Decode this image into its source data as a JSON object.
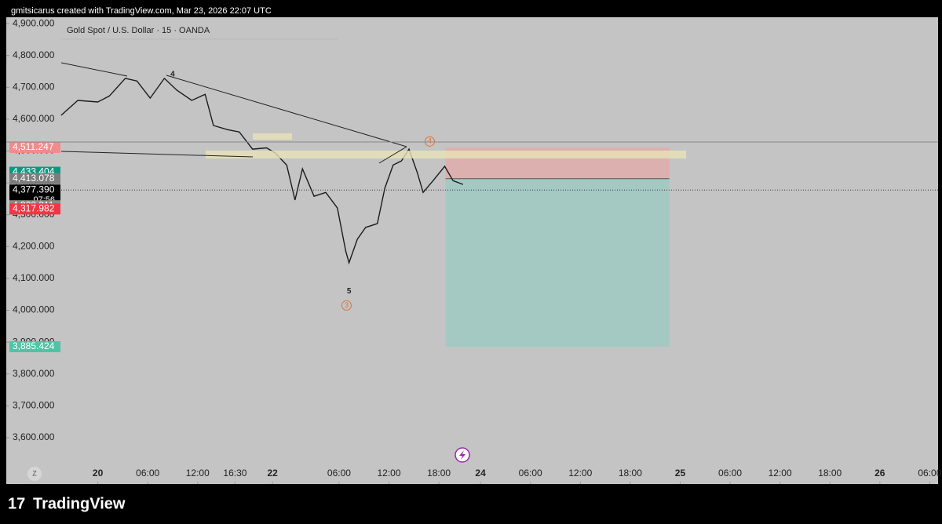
{
  "header": "gmitsicarus created with TradingView.com, Mar 23, 2026 22:07 UTC",
  "footer": "TradingView",
  "scale_button": "Z",
  "chart_data": {
    "type": "line",
    "title": "Gold Spot / U.S. Dollar · 15 · OANDA",
    "annotations": [
      {
        "text": "4",
        "x": 9,
        "y": 4740
      },
      {
        "text": "5",
        "x": 30.2,
        "y": 4060
      },
      {
        "text": "4",
        "x": 39.9,
        "y": 4530,
        "circled": true
      },
      {
        "text": "3",
        "x": 29.9,
        "y": 4015,
        "circled": true
      }
    ],
    "x": [
      -4.4,
      -2.4,
      0,
      1.4,
      3.3,
      4.7,
      6.3,
      8,
      9.5,
      11.3,
      12.9,
      13.9,
      15.6,
      17,
      18.6,
      20.3,
      21.3,
      22.7,
      23.7,
      24.6,
      26,
      27.4,
      28.8,
      29.8,
      30.2,
      31.2,
      32.2,
      33.6,
      34.5,
      35.5,
      36.5,
      37.4,
      38.4,
      39.1,
      40.3,
      41.7,
      42.7,
      43.9
    ],
    "series": [
      {
        "name": "XAUUSD",
        "color": "#1b1b1b",
        "values": [
          4612,
          4659,
          4654,
          4673,
          4728,
          4720,
          4666,
          4728,
          4691,
          4659,
          4678,
          4580,
          4567,
          4560,
          4506,
          4510,
          4494,
          4456,
          4346,
          4444,
          4358,
          4370,
          4321,
          4186,
          4149,
          4223,
          4260,
          4272,
          4383,
          4456,
          4469,
          4506,
          4432,
          4370,
          4407,
          4452,
          4407,
          4395
        ]
      }
    ],
    "position": {
      "x": [
        41.8,
        68.7
      ],
      "stop": 4511.247,
      "entry": 4413.078,
      "target": 3885.424
    },
    "price_labels": [
      {
        "value": 4511.247,
        "label": "4,511.247",
        "color": "#f28b8b"
      },
      {
        "value": 4433.404,
        "label": "4,433.404",
        "color": "#089981"
      },
      {
        "value": 4413.078,
        "label": "4,413.078",
        "color": "#7d7d7d"
      },
      {
        "value": 4377.39,
        "label": "4,377.390",
        "color": "#000000",
        "countdown": "07:56"
      },
      {
        "value": 4328.311,
        "label": "4,328.311",
        "color": "#8a8a8a"
      },
      {
        "value": 4317.982,
        "label": "4,317.982",
        "color": "#f23645"
      },
      {
        "value": 3885.424,
        "label": "3,885.424",
        "color": "#4fc3a6"
      }
    ],
    "xlim": [
      -11,
      101
    ],
    "ylim": [
      3516,
      4920
    ],
    "yticks": [
      {
        "value": 3600,
        "label": "3,600.000"
      },
      {
        "value": 3700,
        "label": "3,700.000"
      },
      {
        "value": 3800,
        "label": "3,800.000"
      },
      {
        "value": 3900,
        "label": "3,900.000"
      },
      {
        "value": 4000,
        "label": "4,000.000"
      },
      {
        "value": 4100,
        "label": "4,100.000"
      },
      {
        "value": 4200,
        "label": "4,200.000"
      },
      {
        "value": 4300,
        "label": "4,300.000"
      },
      {
        "value": 4400,
        "label": "4,400.000"
      },
      {
        "value": 4500,
        "label": "4,500.000"
      },
      {
        "value": 4600,
        "label": "4,600.000"
      },
      {
        "value": 4700,
        "label": "4,700.000"
      },
      {
        "value": 4800,
        "label": "4,800.000"
      },
      {
        "value": 4900,
        "label": "4,900.000"
      }
    ],
    "xticks": [
      {
        "value": 0,
        "label": "20"
      },
      {
        "value": 6,
        "label": "06:00"
      },
      {
        "value": 12,
        "label": "12:00"
      },
      {
        "value": 16.5,
        "label": "16:30"
      },
      {
        "value": 21,
        "label": "22"
      },
      {
        "value": 29,
        "label": "06:00"
      },
      {
        "value": 35,
        "label": "12:00"
      },
      {
        "value": 41,
        "label": "18:00"
      },
      {
        "value": 46,
        "label": "24"
      },
      {
        "value": 52,
        "label": "06:00"
      },
      {
        "value": 58,
        "label": "12:00"
      },
      {
        "value": 64,
        "label": "18:00"
      },
      {
        "value": 70,
        "label": "25"
      },
      {
        "value": 76,
        "label": "06:00"
      },
      {
        "value": 82,
        "label": "12:00"
      },
      {
        "value": 88,
        "label": "18:00"
      },
      {
        "value": 94,
        "label": "26"
      },
      {
        "value": 100,
        "label": "06:00"
      }
    ]
  }
}
